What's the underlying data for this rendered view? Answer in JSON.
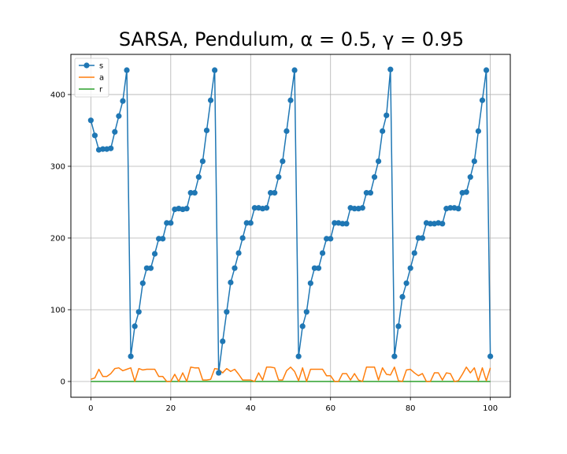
{
  "chart_data": {
    "type": "line",
    "title": "SARSA, Pendulum, α = 0.5, γ = 0.95",
    "xlabel": "",
    "ylabel": "",
    "xlim": [
      -5,
      105
    ],
    "ylim": [
      -22,
      456
    ],
    "xticks": [
      0,
      20,
      40,
      60,
      80,
      100
    ],
    "yticks": [
      0,
      100,
      200,
      300,
      400
    ],
    "grid": true,
    "legend_position": "top-left",
    "x": [
      0,
      1,
      2,
      3,
      4,
      5,
      6,
      7,
      8,
      9,
      10,
      11,
      12,
      13,
      14,
      15,
      16,
      17,
      18,
      19,
      20,
      21,
      22,
      23,
      24,
      25,
      26,
      27,
      28,
      29,
      30,
      31,
      32,
      33,
      34,
      35,
      36,
      37,
      38,
      39,
      40,
      41,
      42,
      43,
      44,
      45,
      46,
      47,
      48,
      49,
      50,
      51,
      52,
      53,
      54,
      55,
      56,
      57,
      58,
      59,
      60,
      61,
      62,
      63,
      64,
      65,
      66,
      67,
      68,
      69,
      70,
      71,
      72,
      73,
      74,
      75,
      76,
      77,
      78,
      79,
      80,
      81,
      82,
      83,
      84,
      85,
      86,
      87,
      88,
      89,
      90,
      91,
      92,
      93,
      94,
      95,
      96,
      97,
      98,
      99,
      100
    ],
    "series": [
      {
        "name": "s",
        "color": "#1f77b4",
        "marker": true,
        "values": [
          364,
          343,
          323,
          324,
          324,
          325,
          348,
          370,
          391,
          434,
          35,
          77,
          97,
          137,
          158,
          158,
          178,
          199,
          199,
          221,
          221,
          240,
          241,
          240,
          241,
          263,
          263,
          285,
          307,
          350,
          392,
          434,
          12,
          56,
          97,
          138,
          158,
          179,
          200,
          221,
          221,
          242,
          242,
          241,
          242,
          263,
          263,
          285,
          307,
          349,
          392,
          434,
          35,
          77,
          97,
          137,
          158,
          158,
          179,
          199,
          199,
          221,
          221,
          220,
          220,
          242,
          241,
          241,
          242,
          263,
          263,
          285,
          307,
          349,
          371,
          435,
          35,
          77,
          118,
          137,
          158,
          179,
          200,
          200,
          221,
          220,
          220,
          221,
          220,
          241,
          242,
          242,
          241,
          263,
          264,
          285,
          307,
          349,
          392,
          434,
          35
        ]
      },
      {
        "name": "a",
        "color": "#ff7f0e",
        "marker": false,
        "values": [
          3,
          5,
          17,
          7,
          7,
          11,
          18,
          19,
          15,
          17,
          19,
          0,
          18,
          16,
          17,
          17,
          17,
          7,
          7,
          0,
          0,
          10,
          0,
          12,
          0,
          20,
          19,
          19,
          2,
          2,
          3,
          18,
          17,
          12,
          18,
          14,
          17,
          10,
          2,
          2,
          2,
          0,
          12,
          2,
          20,
          20,
          19,
          2,
          2,
          15,
          20,
          14,
          1,
          19,
          0,
          17,
          17,
          17,
          17,
          8,
          8,
          0,
          0,
          11,
          11,
          2,
          11,
          2,
          0,
          20,
          20,
          20,
          2,
          19,
          10,
          9,
          20,
          1,
          0,
          16,
          17,
          12,
          8,
          11,
          0,
          0,
          12,
          12,
          2,
          12,
          11,
          0,
          1,
          10,
          20,
          12,
          19,
          1,
          19,
          1,
          19
        ]
      },
      {
        "name": "r",
        "color": "#2ca02c",
        "marker": false,
        "values": [
          0,
          0,
          0,
          0,
          0,
          0,
          0,
          0,
          0,
          0,
          0,
          0,
          0,
          0,
          0,
          0,
          0,
          0,
          0,
          0,
          0,
          0,
          0,
          0,
          0,
          0,
          0,
          0,
          0,
          0,
          0,
          0,
          0,
          0,
          0,
          0,
          0,
          0,
          0,
          0,
          0,
          0,
          0,
          0,
          0,
          0,
          0,
          0,
          0,
          0,
          0,
          0,
          0,
          0,
          0,
          0,
          0,
          0,
          0,
          0,
          0,
          0,
          0,
          0,
          0,
          0,
          0,
          0,
          0,
          0,
          0,
          0,
          0,
          0,
          0,
          0,
          0,
          0,
          0,
          0,
          0,
          0,
          0,
          0,
          0,
          0,
          0,
          0,
          0,
          0,
          0,
          0,
          0,
          0,
          0,
          0,
          0,
          0,
          0,
          0,
          0
        ]
      }
    ]
  }
}
